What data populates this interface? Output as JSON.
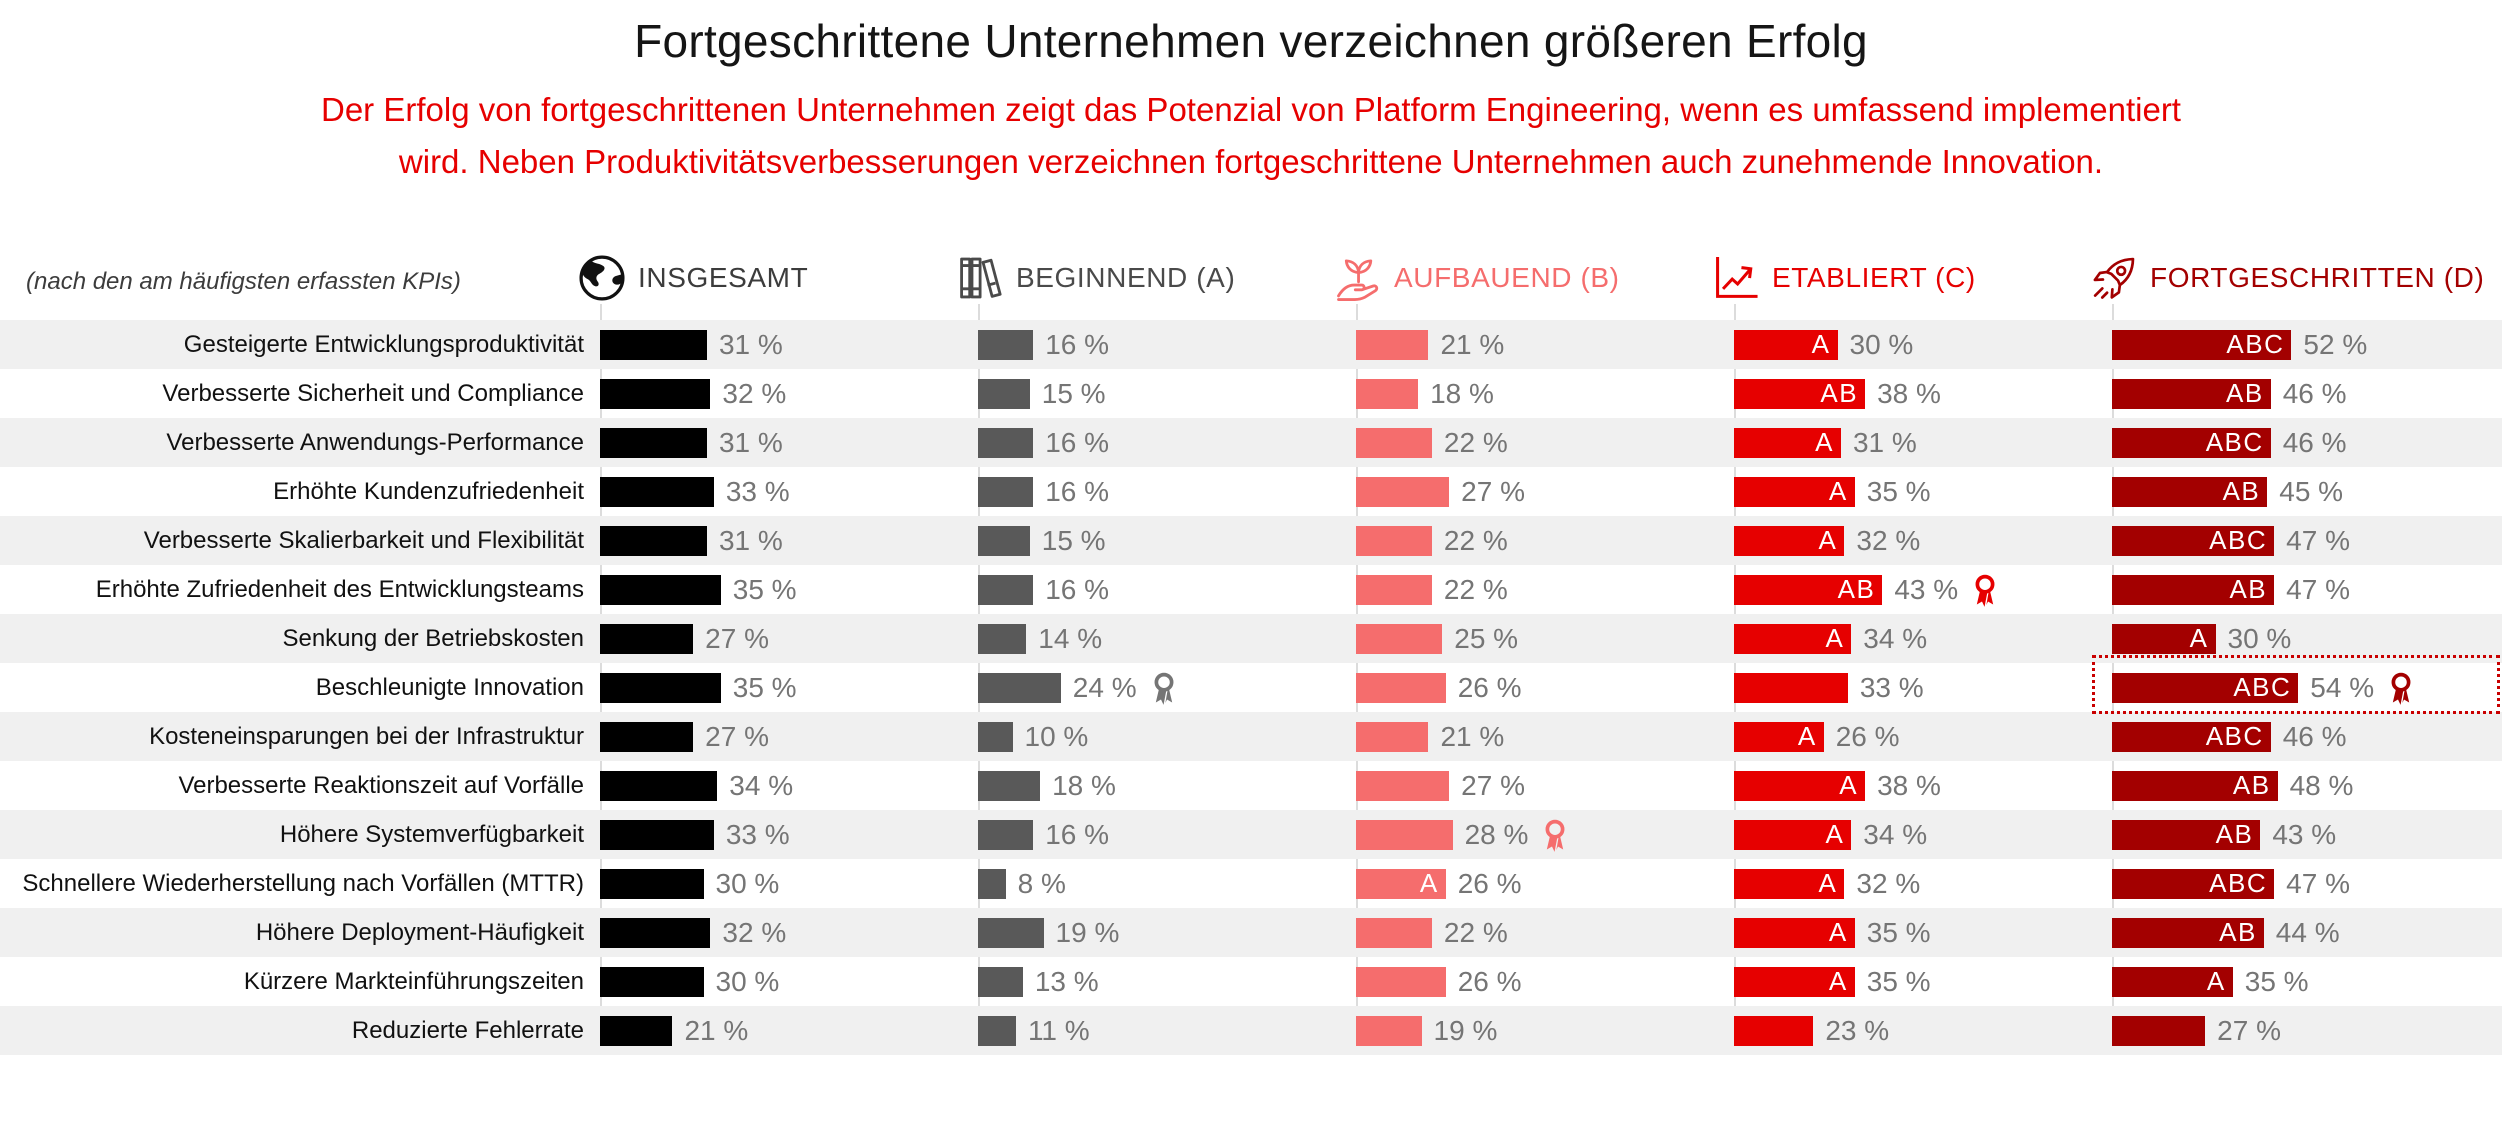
{
  "title": "Fortgeschrittene Unternehmen verzeichnen größeren Erfolg",
  "subtitle_lines": [
    "Der Erfolg von fortgeschrittenen Unternehmen zeigt das Potenzial von Platform Engineering, wenn es umfassend implementiert",
    "wird. Neben Produktivitätsverbesserungen verzeichnen fortgeschrittene Unternehmen auch zunehmende Innovation."
  ],
  "note": "(nach den am häufigsten erfassten KPIs)",
  "colors": {
    "subtitle_red": "#e60000",
    "row_band": "#f0f0f0",
    "value_text": "#757575",
    "axis_line": "#dcdcdc",
    "highlight_dotted": "#c90000"
  },
  "chart_data": {
    "type": "bar",
    "unit": "%",
    "orientation": "horizontal",
    "categories": [
      "Gesteigerte Entwicklungsproduktivität",
      "Verbesserte Sicherheit und Compliance",
      "Verbesserte Anwendungs-Performance",
      "Erhöhte Kundenzufriedenheit",
      "Verbesserte Skalierbarkeit und Flexibilität",
      "Erhöhte Zufriedenheit des Entwicklungsteams",
      "Senkung der Betriebskosten",
      "Beschleunigte Innovation",
      "Kosteneinsparungen bei der Infrastruktur",
      "Verbesserte Reaktionszeit auf Vorfälle",
      "Höhere Systemverfügbarkeit",
      "Schnellere Wiederherstellung nach Vorfällen (MTTR)",
      "Höhere Deployment-Häufigkeit",
      "Kürzere Markteinführungszeiten",
      "Reduzierte Fehlerrate"
    ],
    "series": [
      {
        "key": "insgesamt",
        "name": "INSGESAMT",
        "icon": "globe-icon",
        "color": "#000000",
        "header_color": "#3c3c3c",
        "values": [
          31,
          32,
          31,
          33,
          31,
          35,
          27,
          35,
          27,
          34,
          33,
          30,
          32,
          30,
          21
        ],
        "bar_labels": [
          "",
          "",
          "",
          "",
          "",
          "",
          "",
          "",
          "",
          "",
          "",
          "",
          "",
          "",
          ""
        ]
      },
      {
        "key": "beginnend",
        "name": "BEGINNEND (A)",
        "icon": "books-icon",
        "color": "#595959",
        "header_color": "#4a4a4a",
        "values": [
          16,
          15,
          16,
          16,
          15,
          16,
          14,
          24,
          10,
          18,
          16,
          8,
          19,
          13,
          11
        ],
        "bar_labels": [
          "",
          "",
          "",
          "",
          "",
          "",
          "",
          "",
          "",
          "",
          "",
          "",
          "",
          "",
          ""
        ]
      },
      {
        "key": "aufbauend",
        "name": "AUFBAUEND (B)",
        "icon": "seedling-hand-icon",
        "color": "#f56d6d",
        "header_color": "#f56d6d",
        "values": [
          21,
          18,
          22,
          27,
          22,
          22,
          25,
          26,
          21,
          27,
          28,
          26,
          22,
          26,
          19
        ],
        "bar_labels": [
          "",
          "",
          "",
          "",
          "",
          "",
          "",
          "",
          "",
          "",
          "",
          "A",
          "",
          "",
          ""
        ]
      },
      {
        "key": "etabliert",
        "name": "ETABLIERT (C)",
        "icon": "line-chart-icon",
        "color": "#e60000",
        "header_color": "#e60000",
        "values": [
          30,
          38,
          31,
          35,
          32,
          43,
          34,
          33,
          26,
          38,
          34,
          32,
          35,
          35,
          23
        ],
        "bar_labels": [
          "A",
          "AB",
          "A",
          "A",
          "A",
          "AB",
          "A",
          "",
          "A",
          "A",
          "A",
          "A",
          "A",
          "A",
          ""
        ]
      },
      {
        "key": "fortgeschritten",
        "name": "FORTGESCHRITTEN (D)",
        "icon": "rocket-icon",
        "color": "#a30000",
        "header_color": "#a30000",
        "values": [
          52,
          46,
          46,
          45,
          47,
          47,
          30,
          54,
          46,
          48,
          43,
          47,
          44,
          35,
          27
        ],
        "bar_labels": [
          "ABC",
          "AB",
          "ABC",
          "AB",
          "ABC",
          "AB",
          "A",
          "ABC",
          "ABC",
          "AB",
          "AB",
          "ABC",
          "AB",
          "A",
          ""
        ]
      }
    ],
    "awards": [
      {
        "category": "Beschleunigte Innovation",
        "series": "beginnend"
      },
      {
        "category": "Höhere Systemverfügbarkeit",
        "series": "aufbauend"
      },
      {
        "category": "Erhöhte Zufriedenheit des Entwicklungsteams",
        "series": "etabliert"
      },
      {
        "category": "Beschleunigte Innovation",
        "series": "fortgeschritten"
      }
    ],
    "highlight": {
      "category": "Beschleunigte Innovation",
      "series": "fortgeschritten",
      "style": "dotted-red-outline"
    },
    "value_suffix": " %"
  }
}
